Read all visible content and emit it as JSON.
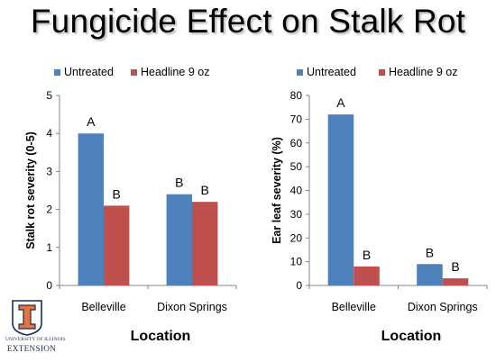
{
  "slide": {
    "title": "Fungicide Effect on Stalk Rot"
  },
  "logo": {
    "university": "UNIVERSITY OF ILLINOIS",
    "extension": "EXTENSION",
    "icon": "illinois-block-i-shield-icon"
  },
  "colors": {
    "untreated": "#4f81bd",
    "headline": "#c0504d",
    "axis": "#868686",
    "grid": "#d9d9d9"
  },
  "chart_data": [
    {
      "type": "bar",
      "categories": [
        "Belleville",
        "Dixon Springs"
      ],
      "series": [
        {
          "name": "Untreated",
          "values": [
            4.0,
            2.4
          ],
          "letters": [
            "A",
            "B"
          ]
        },
        {
          "name": "Headline 9 oz",
          "values": [
            2.1,
            2.2
          ],
          "letters": [
            "B",
            "B"
          ]
        }
      ],
      "xlabel": "Location",
      "ylabel": "Stalk rot severity (0-5)",
      "ylim": [
        0,
        5
      ],
      "yticks": [
        0,
        1,
        2,
        3,
        4,
        5
      ],
      "ytick_labels": [
        "0",
        "1",
        "2",
        "3",
        "4",
        "5"
      ],
      "legend": "top",
      "grid": false
    },
    {
      "type": "bar",
      "categories": [
        "Belleville",
        "Dixon Springs"
      ],
      "series": [
        {
          "name": "Untreated",
          "values": [
            72,
            9
          ],
          "letters": [
            "A",
            "B"
          ]
        },
        {
          "name": "Headline 9 oz",
          "values": [
            8,
            3
          ],
          "letters": [
            "B",
            "B"
          ]
        }
      ],
      "xlabel": "Location",
      "ylabel": "Ear leaf severity (%)",
      "ylim": [
        0,
        80
      ],
      "yticks": [
        0,
        10,
        20,
        30,
        40,
        50,
        60,
        70,
        80
      ],
      "ytick_labels": [
        "0",
        "10",
        "20",
        "30",
        "40",
        "50",
        "60",
        "70",
        "80"
      ],
      "legend": "top",
      "grid": false
    }
  ]
}
